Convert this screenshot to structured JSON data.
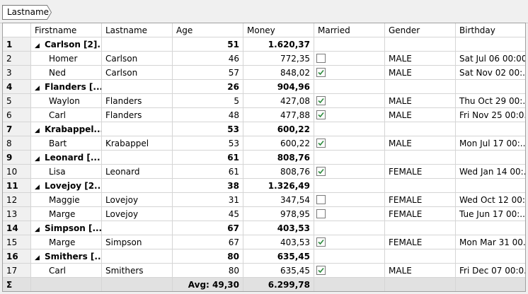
{
  "grouping": {
    "chip_label": "Lastname"
  },
  "columns": [
    "Firstname",
    "Lastname",
    "Age",
    "Money",
    "Married",
    "Gender",
    "Birthday"
  ],
  "rows": [
    {
      "n": "1",
      "type": "group",
      "first": "Carlson [2]...",
      "last": "",
      "age": "51",
      "money": "1.620,37",
      "married": null,
      "gender": "",
      "birthday": ""
    },
    {
      "n": "2",
      "type": "data",
      "first": "Homer",
      "last": "Carlson",
      "age": "46",
      "money": "772,35",
      "married": false,
      "gender": "MALE",
      "birthday": "Sat Jul 06 00:00..."
    },
    {
      "n": "3",
      "type": "data",
      "first": "Ned",
      "last": "Carlson",
      "age": "57",
      "money": "848,02",
      "married": true,
      "gender": "MALE",
      "birthday": "Sat Nov 02 00:..."
    },
    {
      "n": "4",
      "type": "group",
      "first": "Flanders [...",
      "last": "",
      "age": "26",
      "money": "904,96",
      "married": null,
      "gender": "",
      "birthday": ""
    },
    {
      "n": "5",
      "type": "data",
      "first": "Waylon",
      "last": "Flanders",
      "age": "5",
      "money": "427,08",
      "married": true,
      "gender": "MALE",
      "birthday": "Thu Oct 29 00:..."
    },
    {
      "n": "6",
      "type": "data",
      "first": "Carl",
      "last": "Flanders",
      "age": "48",
      "money": "477,88",
      "married": true,
      "gender": "MALE",
      "birthday": "Fri Nov 25 00:0..."
    },
    {
      "n": "7",
      "type": "group",
      "first": "Krabappel...",
      "last": "",
      "age": "53",
      "money": "600,22",
      "married": null,
      "gender": "",
      "birthday": ""
    },
    {
      "n": "8",
      "type": "data",
      "first": "Bart",
      "last": "Krabappel",
      "age": "53",
      "money": "600,22",
      "married": true,
      "gender": "MALE",
      "birthday": "Mon Jul 17 00:..."
    },
    {
      "n": "9",
      "type": "group",
      "first": "Leonard [...",
      "last": "",
      "age": "61",
      "money": "808,76",
      "married": null,
      "gender": "",
      "birthday": ""
    },
    {
      "n": "10",
      "type": "data",
      "first": "Lisa",
      "last": "Leonard",
      "age": "61",
      "money": "808,76",
      "married": true,
      "gender": "FEMALE",
      "birthday": "Wed Jan 14 00:..."
    },
    {
      "n": "11",
      "type": "group",
      "first": "Lovejoy [2...",
      "last": "",
      "age": "38",
      "money": "1.326,49",
      "married": null,
      "gender": "",
      "birthday": ""
    },
    {
      "n": "12",
      "type": "data",
      "first": "Maggie",
      "last": "Lovejoy",
      "age": "31",
      "money": "347,54",
      "married": false,
      "gender": "FEMALE",
      "birthday": "Wed Oct 12 00:..."
    },
    {
      "n": "13",
      "type": "data",
      "first": "Marge",
      "last": "Lovejoy",
      "age": "45",
      "money": "978,95",
      "married": false,
      "gender": "FEMALE",
      "birthday": "Tue Jun 17 00:..."
    },
    {
      "n": "14",
      "type": "group",
      "first": "Simpson [...",
      "last": "",
      "age": "67",
      "money": "403,53",
      "married": null,
      "gender": "",
      "birthday": ""
    },
    {
      "n": "15",
      "type": "data",
      "first": "Marge",
      "last": "Simpson",
      "age": "67",
      "money": "403,53",
      "married": true,
      "gender": "FEMALE",
      "birthday": "Mon Mar 31 00..."
    },
    {
      "n": "16",
      "type": "group",
      "first": "Smithers [...",
      "last": "",
      "age": "80",
      "money": "635,45",
      "married": null,
      "gender": "",
      "birthday": ""
    },
    {
      "n": "17",
      "type": "data",
      "first": "Carl",
      "last": "Smithers",
      "age": "80",
      "money": "635,45",
      "married": true,
      "gender": "MALE",
      "birthday": "Fri Dec 07 00:0..."
    }
  ],
  "summary": {
    "symbol": "Σ",
    "age": "Avg: 49,30",
    "money": "6.299,78"
  },
  "colors": {
    "check": "#2e8b3e",
    "summary_bg": "#e1e1e1",
    "grid_line": "#d5d5d5"
  },
  "icons": {
    "group_toggle": "collapse-triangle-icon",
    "checkbox": "checkbox-icon"
  }
}
